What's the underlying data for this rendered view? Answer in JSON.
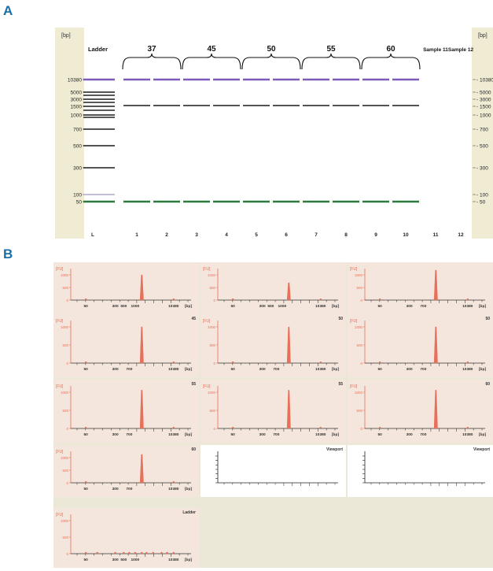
{
  "panels": {
    "a": "A",
    "b": "B"
  },
  "gel": {
    "unit": "[bp]",
    "ladder_label": "Ladder",
    "groups": [
      "37",
      "45",
      "50",
      "55",
      "60"
    ],
    "sample_labels": [
      "Sample 11",
      "Sample 12"
    ],
    "ladder_sizes": [
      "10380",
      "5000",
      "3000",
      "1500",
      "1000",
      "700",
      "500",
      "300",
      "100",
      "50"
    ],
    "side_ticks": [
      "10380",
      "5000",
      "3000",
      "1500",
      "1000",
      "700",
      "500",
      "300",
      "100",
      "50"
    ],
    "lane_labels": [
      "L",
      "1",
      "2",
      "3",
      "4",
      "5",
      "6",
      "7",
      "8",
      "9",
      "10",
      "11",
      "12"
    ],
    "colors": {
      "bg": "#ffffff",
      "side": "#f0ecd4",
      "upper_marker": "#7d5bb8",
      "lower_marker": "#2e7a3e",
      "sample_band": "#1a1a1a",
      "ladder_100": "#b0a8c8"
    }
  },
  "electropherograms": {
    "y_unit": "[FU]",
    "x_unit": "[bp]",
    "y_ticks": [
      "1000",
      "500",
      "0"
    ],
    "x_ticks_sample": [
      "50",
      "300",
      "500",
      "1000",
      "10380"
    ],
    "x_ticks_alt": [
      "50",
      "300",
      "700",
      "10380"
    ],
    "colors": {
      "bg": "#f4e6dc",
      "peak": "#e8705a",
      "panel_bg": "#ece8d8"
    },
    "plots": [
      {
        "label": "",
        "peak_bp": 1500,
        "peak_height_frac": 0.8
      },
      {
        "label": "",
        "peak_bp": 1500,
        "peak_height_frac": 0.55
      },
      {
        "label": "",
        "peak_bp": 1500,
        "peak_height_frac": 0.95
      },
      {
        "label": "45",
        "peak_bp": 1500,
        "peak_height_frac": 0.85
      },
      {
        "label": "50",
        "peak_bp": 1500,
        "peak_height_frac": 0.85
      },
      {
        "label": "50",
        "peak_bp": 1500,
        "peak_height_frac": 0.85
      },
      {
        "label": "55",
        "peak_bp": 1500,
        "peak_height_frac": 0.9
      },
      {
        "label": "55",
        "peak_bp": 1500,
        "peak_height_frac": 0.9
      },
      {
        "label": "60",
        "peak_bp": 1500,
        "peak_height_frac": 0.9
      },
      {
        "label": "60",
        "peak_bp": 1500,
        "peak_height_frac": 0.9
      },
      {
        "label": "Viewport",
        "empty": true
      },
      {
        "label": "Viewport",
        "empty": true
      },
      {
        "label": "Ladder",
        "ladder": true
      }
    ]
  }
}
